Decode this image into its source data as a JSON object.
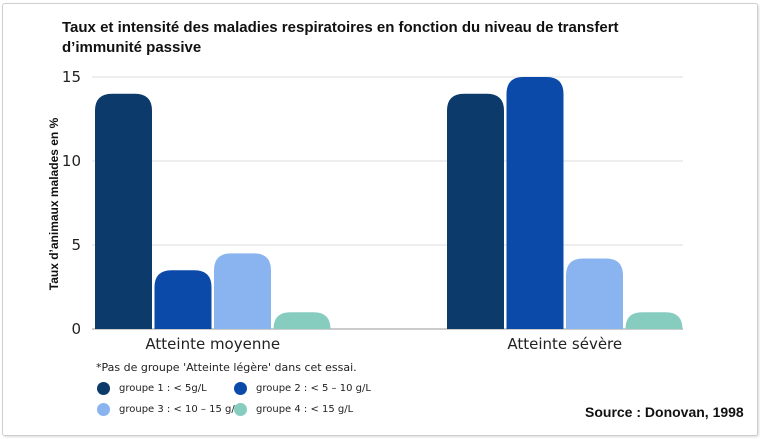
{
  "chart_data": {
    "type": "bar",
    "title": "Taux et intensité des maladies respiratoires en fonction du niveau de transfert d’immunité passive",
    "ylabel": "Taux d’animaux malades en %",
    "xlabel": "",
    "ylim": [
      0,
      15
    ],
    "yticks": [
      0,
      5,
      10,
      15
    ],
    "grid": true,
    "categories": [
      "Atteinte moyenne",
      "Atteinte sévère"
    ],
    "series": [
      {
        "name": "groupe 1 : < 5g/L",
        "color": "#0b3a6b",
        "values": [
          14,
          14
        ]
      },
      {
        "name": "groupe 2 : < 5 – 10 g/L",
        "color": "#0b4aa8",
        "values": [
          3.5,
          15
        ]
      },
      {
        "name": "groupe 3 : < 10 – 15 g/L",
        "color": "#8ab4f0",
        "values": [
          4.5,
          4.2
        ]
      },
      {
        "name": "groupe 4 : < 15 g/L",
        "color": "#86cdc0",
        "values": [
          1,
          1
        ]
      }
    ],
    "legend_position": "bottom-left",
    "note": "*Pas de groupe 'Atteinte légère' dans cet essai.",
    "source": "Source : Donovan, 1998"
  }
}
